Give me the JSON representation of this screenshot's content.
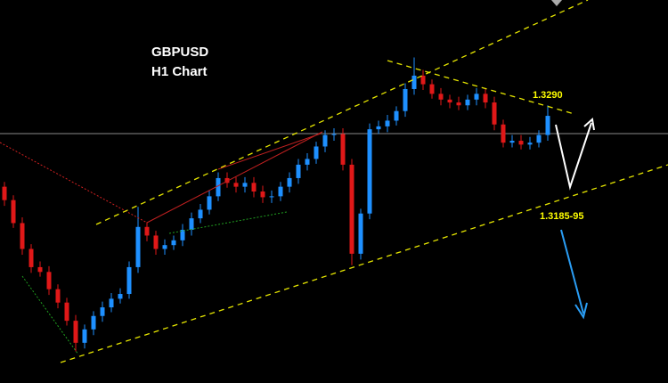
{
  "chart_data": {
    "type": "candlestick",
    "title": "GBPUSD",
    "subtitle": "H1 Chart",
    "annotations": [
      "1.3290",
      "1.3185-95"
    ],
    "ylim": [
      1.3,
      1.34
    ],
    "up_color": "#1e90ff",
    "down_color": "#e01818",
    "open": [
      1.3205,
      1.3191,
      1.3167,
      1.314,
      1.3121,
      1.3116,
      1.3098,
      1.3084,
      1.3065,
      1.3042,
      1.3056,
      1.307,
      1.3079,
      1.3088,
      1.3093,
      1.3121,
      1.3163,
      1.3154,
      1.314,
      1.3144,
      1.3149,
      1.316,
      1.3172,
      1.3181,
      1.3195,
      1.3214,
      1.3209,
      1.3205,
      1.3209,
      1.32,
      1.3194,
      1.3195,
      1.3205,
      1.3214,
      1.3228,
      1.3234,
      1.3247,
      1.3259,
      1.326,
      1.3228,
      1.3135,
      1.3177,
      1.3265,
      1.3268,
      1.3274,
      1.3284,
      1.3307,
      1.3321,
      1.3312,
      1.3302,
      1.3296,
      1.3293,
      1.329,
      1.3296,
      1.3302,
      1.3293,
      1.327,
      1.3251,
      1.3253,
      1.3249,
      1.3251,
      1.3259
    ],
    "high": [
      1.321,
      1.3196,
      1.3173,
      1.3145,
      1.3127,
      1.3122,
      1.3103,
      1.3089,
      1.3071,
      1.3061,
      1.3075,
      1.3085,
      1.3094,
      1.3099,
      1.3127,
      1.3184,
      1.3168,
      1.3159,
      1.315,
      1.3154,
      1.3166,
      1.3178,
      1.3187,
      1.3201,
      1.322,
      1.322,
      1.3215,
      1.3215,
      1.3215,
      1.3206,
      1.3201,
      1.321,
      1.322,
      1.3234,
      1.324,
      1.3252,
      1.3264,
      1.3266,
      1.3266,
      1.3234,
      1.3182,
      1.3271,
      1.3274,
      1.328,
      1.3289,
      1.3313,
      1.334,
      1.3327,
      1.3317,
      1.3308,
      1.3301,
      1.3299,
      1.3301,
      1.3308,
      1.3308,
      1.3299,
      1.3275,
      1.3259,
      1.3259,
      1.3257,
      1.3264,
      1.329
    ],
    "low": [
      1.3185,
      1.3162,
      1.3134,
      1.3115,
      1.3111,
      1.3092,
      1.3078,
      1.306,
      1.3033,
      1.3036,
      1.305,
      1.3064,
      1.3074,
      1.3083,
      1.3088,
      1.3115,
      1.3148,
      1.3134,
      1.3134,
      1.3139,
      1.3143,
      1.3154,
      1.3167,
      1.3176,
      1.319,
      1.3204,
      1.3199,
      1.3199,
      1.3194,
      1.3188,
      1.3188,
      1.319,
      1.3199,
      1.3208,
      1.3222,
      1.3229,
      1.3241,
      1.3253,
      1.3222,
      1.3123,
      1.3129,
      1.3171,
      1.326,
      1.3262,
      1.3269,
      1.3278,
      1.3301,
      1.3306,
      1.3297,
      1.329,
      1.3287,
      1.3285,
      1.3285,
      1.329,
      1.3287,
      1.3264,
      1.3246,
      1.3246,
      1.3244,
      1.3244,
      1.3246,
      1.3253
    ],
    "close": [
      1.3191,
      1.3167,
      1.314,
      1.3121,
      1.3116,
      1.3098,
      1.3084,
      1.3065,
      1.3042,
      1.3056,
      1.307,
      1.3079,
      1.3088,
      1.3093,
      1.3121,
      1.3163,
      1.3154,
      1.314,
      1.3144,
      1.3149,
      1.316,
      1.3172,
      1.3181,
      1.3195,
      1.3214,
      1.3209,
      1.3205,
      1.3209,
      1.32,
      1.3194,
      1.3195,
      1.3205,
      1.3214,
      1.3228,
      1.3234,
      1.3247,
      1.3259,
      1.326,
      1.3228,
      1.3135,
      1.3177,
      1.3265,
      1.3268,
      1.3274,
      1.3284,
      1.3307,
      1.3321,
      1.3312,
      1.3302,
      1.3296,
      1.3293,
      1.329,
      1.3296,
      1.3302,
      1.3293,
      1.327,
      1.3251,
      1.3253,
      1.3249,
      1.3251,
      1.3259,
      1.3279
    ]
  }
}
